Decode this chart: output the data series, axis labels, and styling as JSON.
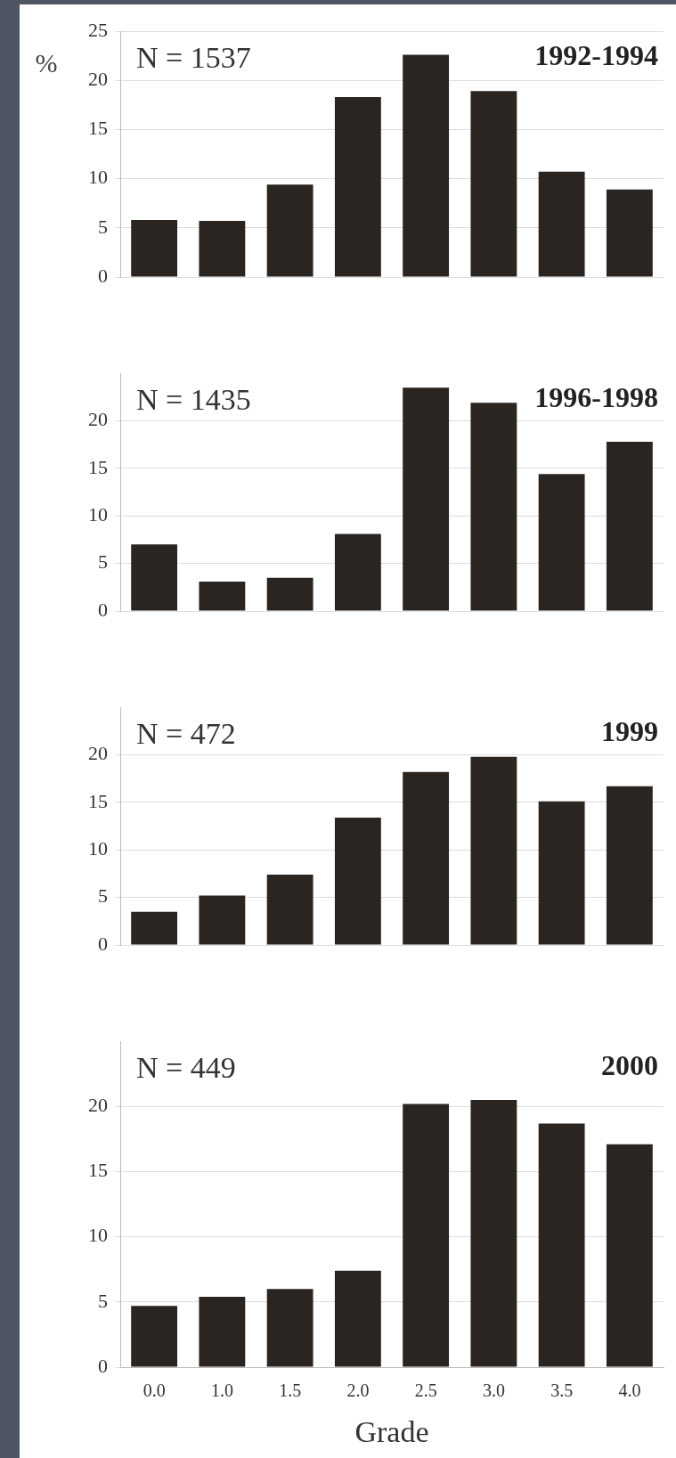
{
  "chart_data": [
    {
      "type": "bar",
      "title": "1992-1994",
      "annotations": [
        "N = 1537"
      ],
      "ylabel": "%",
      "categories": [
        "0.0",
        "1.0",
        "1.5",
        "2.0",
        "2.5",
        "3.0",
        "3.5",
        "4.0"
      ],
      "values": [
        5.8,
        5.7,
        9.4,
        18.3,
        22.6,
        18.9,
        10.7,
        8.9
      ],
      "color": "#2a2520",
      "ylim": [
        0,
        25
      ],
      "yticks": [
        0,
        5,
        10,
        15,
        20,
        25
      ],
      "grid": "y",
      "tick_labels": "y",
      "legend": false
    },
    {
      "type": "bar",
      "title": "1996-1998",
      "annotations": [
        "N = 1435"
      ],
      "categories": [
        "0.0",
        "1.0",
        "1.5",
        "2.0",
        "2.5",
        "3.0",
        "3.5",
        "4.0"
      ],
      "values": [
        7.0,
        3.1,
        3.5,
        8.1,
        23.5,
        21.9,
        14.4,
        17.8
      ],
      "color": "#2a2520",
      "ylim": [
        0,
        25
      ],
      "yticks": [
        0,
        5,
        10,
        15,
        20
      ],
      "grid": "y",
      "tick_labels": "y",
      "legend": false
    },
    {
      "type": "bar",
      "title": "1999",
      "annotations": [
        "N = 472"
      ],
      "categories": [
        "0.0",
        "1.0",
        "1.5",
        "2.0",
        "2.5",
        "3.0",
        "3.5",
        "4.0"
      ],
      "values": [
        3.5,
        5.2,
        7.4,
        13.4,
        18.2,
        19.8,
        15.1,
        16.7
      ],
      "color": "#2a2520",
      "ylim": [
        0,
        25
      ],
      "yticks": [
        0,
        5,
        10,
        15,
        20
      ],
      "grid": "y",
      "tick_labels": "y",
      "legend": false
    },
    {
      "type": "bar",
      "title": "2000",
      "annotations": [
        "N = 449"
      ],
      "xlabel": "Grade",
      "categories": [
        "0.0",
        "1.0",
        "1.5",
        "2.0",
        "2.5",
        "3.0",
        "3.5",
        "4.0"
      ],
      "values": [
        4.7,
        5.4,
        6.0,
        7.4,
        20.2,
        20.5,
        18.7,
        17.1
      ],
      "color": "#2a2520",
      "ylim": [
        0,
        25
      ],
      "yticks": [
        0,
        5,
        10,
        15,
        20
      ],
      "grid": "y",
      "legend": false
    }
  ]
}
